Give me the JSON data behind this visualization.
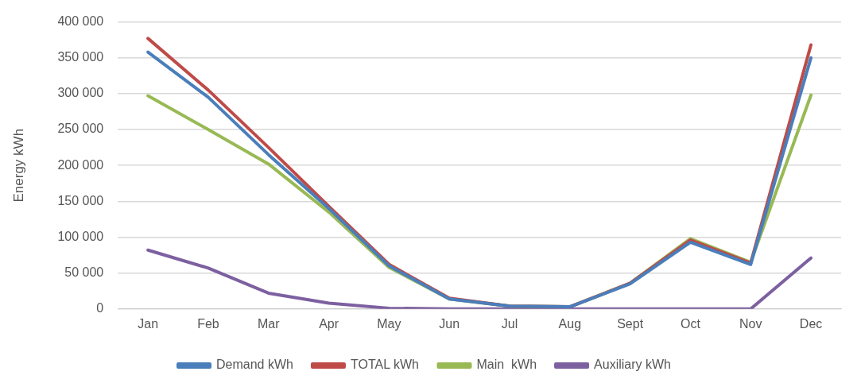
{
  "chart_data": {
    "type": "line",
    "ylabel": "Energy kWh",
    "categories": [
      "Jan",
      "Feb",
      "Mar",
      "Apr",
      "May",
      "Jun",
      "Jul",
      "Aug",
      "Sept",
      "Oct",
      "Nov",
      "Dec"
    ],
    "series": [
      {
        "name": "Demand kWh",
        "color": "#4a7ebb",
        "values": [
          358000,
          295000,
          215000,
          140000,
          60000,
          14000,
          4000,
          3000,
          35000,
          93000,
          62000,
          350000
        ]
      },
      {
        "name": "TOTAL kWh",
        "color": "#be4b48",
        "values": [
          377000,
          305000,
          225000,
          143000,
          62000,
          15000,
          4000,
          3000,
          36000,
          96000,
          64000,
          368000
        ]
      },
      {
        "name": "Main  kWh",
        "color": "#98b954",
        "values": [
          297000,
          250000,
          202000,
          135000,
          58000,
          14000,
          4000,
          3000,
          36000,
          98000,
          65000,
          298000
        ]
      },
      {
        "name": "Auxiliary kWh",
        "color": "#7d60a0",
        "values": [
          82000,
          57000,
          22000,
          8000,
          1000,
          0,
          0,
          0,
          0,
          0,
          0,
          71000
        ]
      }
    ],
    "ylim": [
      0,
      400000
    ],
    "yticks": [
      {
        "value": 0,
        "label": "0"
      },
      {
        "value": 50000,
        "label": "50 000"
      },
      {
        "value": 100000,
        "label": "100 000"
      },
      {
        "value": 150000,
        "label": "150 000"
      },
      {
        "value": 200000,
        "label": "200 000"
      },
      {
        "value": 250000,
        "label": "250 000"
      },
      {
        "value": 300000,
        "label": "300 000"
      },
      {
        "value": 350000,
        "label": "350 000"
      },
      {
        "value": 400000,
        "label": "400 000"
      }
    ],
    "grid": "y",
    "legend": "bottom",
    "marker": "none",
    "line_style": "solid"
  }
}
